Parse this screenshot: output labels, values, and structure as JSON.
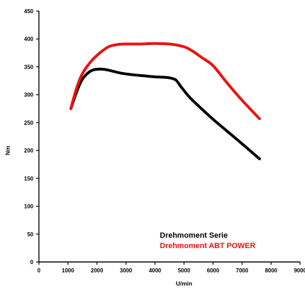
{
  "chart_data": {
    "type": "line",
    "xlabel": "U/min",
    "ylabel": "Nm",
    "xlim": [
      0,
      9000
    ],
    "ylim": [
      0,
      450
    ],
    "xticks": [
      0,
      1000,
      2000,
      3000,
      4000,
      5000,
      6000,
      7000,
      8000,
      9000
    ],
    "yticks": [
      0,
      50,
      100,
      150,
      200,
      250,
      300,
      350,
      400,
      450
    ],
    "grid": false,
    "legend_position": "lower-right",
    "series": [
      {
        "name": "Drehmoment Serie",
        "color": "#000000",
        "x": [
          1100,
          1300,
          1500,
          1800,
          2100,
          2400,
          2800,
          3200,
          3600,
          4000,
          4400,
          4700,
          4900,
          5200,
          5600,
          6000,
          6500,
          7000,
          7600
        ],
        "y": [
          275,
          305,
          328,
          343,
          346,
          344,
          339,
          336,
          334,
          332,
          331,
          327,
          314,
          295,
          275,
          256,
          234,
          212,
          185
        ]
      },
      {
        "name": "Drehmoment ABT POWER",
        "color": "#ee1111",
        "x": [
          1100,
          1300,
          1500,
          1800,
          2100,
          2400,
          2700,
          3000,
          3500,
          4000,
          4500,
          5000,
          5300,
          5600,
          6000,
          6500,
          7000,
          7600
        ],
        "y": [
          275,
          312,
          338,
          360,
          375,
          386,
          390,
          391,
          391,
          392,
          391,
          386,
          378,
          367,
          352,
          320,
          290,
          257
        ]
      }
    ]
  }
}
